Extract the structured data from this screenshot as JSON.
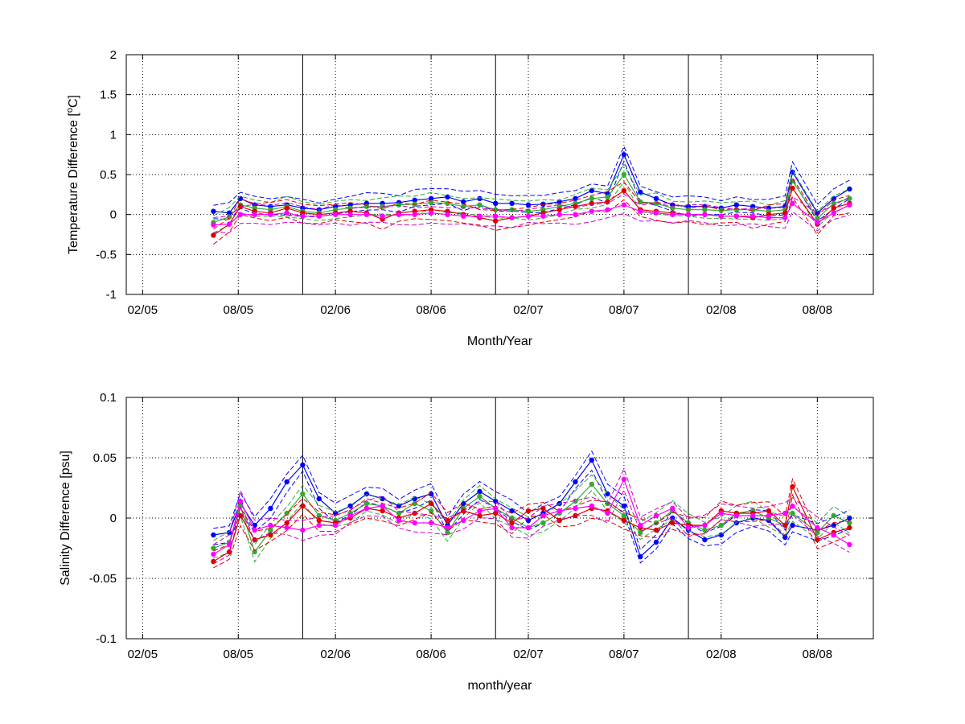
{
  "chart_data": [
    {
      "type": "scatter",
      "xlabel": "Month/Year",
      "ylabel": "Temperature Difference [",
      "ylabel_sup": "o",
      "ylabel_tail": "C]",
      "ylim": [
        -1,
        2
      ],
      "yticks": [
        -1,
        -0.5,
        0,
        0.5,
        1,
        1.5,
        2
      ],
      "ytick_labels": [
        "-1",
        "-0.5",
        "0",
        "0.5",
        "1",
        "1.5",
        "2"
      ],
      "xlim": [
        "2005-01-01",
        "2008-11-15"
      ],
      "xticks": [
        "2005-02-01",
        "2005-08-01",
        "2006-02-01",
        "2006-08-01",
        "2007-02-01",
        "2007-08-01",
        "2008-02-01",
        "2008-08-01"
      ],
      "xtick_labels": [
        "02/05",
        "08/05",
        "02/06",
        "08/06",
        "02/07",
        "08/07",
        "02/08",
        "08/08"
      ],
      "vertical_lines": [
        "2005-12-01",
        "2006-12-01",
        "2007-12-01"
      ],
      "grid": true,
      "series": [
        {
          "color": "#0000ff",
          "band_color": "#0000ff",
          "x": [
            "2005-06-15",
            "2005-07-15",
            "2005-08-05",
            "2005-09-01",
            "2005-10-01",
            "2005-11-01",
            "2005-12-01",
            "2006-01-01",
            "2006-02-01",
            "2006-03-01",
            "2006-04-01",
            "2006-05-01",
            "2006-06-01",
            "2006-07-01",
            "2006-08-01",
            "2006-09-01",
            "2006-10-01",
            "2006-11-01",
            "2006-12-01",
            "2007-01-01",
            "2007-02-01",
            "2007-03-01",
            "2007-04-01",
            "2007-05-01",
            "2007-06-01",
            "2007-07-01",
            "2007-08-01",
            "2007-09-01",
            "2007-10-01",
            "2007-11-01",
            "2007-12-01",
            "2008-01-01",
            "2008-02-01",
            "2008-03-01",
            "2008-04-01",
            "2008-05-01",
            "2008-06-01",
            "2008-06-15",
            "2008-08-01",
            "2008-09-01",
            "2008-10-01"
          ],
          "y": [
            0.04,
            0.02,
            0.2,
            0.12,
            0.1,
            0.12,
            0.08,
            0.06,
            0.1,
            0.12,
            0.14,
            0.14,
            0.15,
            0.18,
            0.2,
            0.22,
            0.16,
            0.2,
            0.14,
            0.14,
            0.12,
            0.13,
            0.16,
            0.2,
            0.3,
            0.26,
            0.75,
            0.28,
            0.2,
            0.12,
            0.1,
            0.1,
            0.08,
            0.12,
            0.1,
            0.08,
            0.1,
            0.53,
            0.02,
            0.2,
            0.32
          ]
        },
        {
          "color": "#33aa33",
          "band_color": "#33aa33",
          "x": [
            "2005-06-15",
            "2005-07-15",
            "2005-08-05",
            "2005-09-01",
            "2005-10-01",
            "2005-11-01",
            "2005-12-01",
            "2006-01-01",
            "2006-02-01",
            "2006-03-01",
            "2006-04-01",
            "2006-05-01",
            "2006-06-01",
            "2006-07-01",
            "2006-08-01",
            "2006-09-01",
            "2006-10-01",
            "2006-11-01",
            "2006-12-01",
            "2007-01-01",
            "2007-02-01",
            "2007-03-01",
            "2007-04-01",
            "2007-05-01",
            "2007-06-01",
            "2007-07-01",
            "2007-08-01",
            "2007-09-01",
            "2007-10-01",
            "2007-11-01",
            "2007-12-01",
            "2008-01-01",
            "2008-02-01",
            "2008-03-01",
            "2008-04-01",
            "2008-05-01",
            "2008-06-01",
            "2008-06-15",
            "2008-08-01",
            "2008-09-01",
            "2008-10-01"
          ],
          "y": [
            -0.1,
            -0.03,
            0.12,
            0.08,
            0.06,
            0.1,
            0.04,
            0.02,
            0.06,
            0.08,
            0.1,
            0.1,
            0.12,
            0.13,
            0.15,
            0.14,
            0.1,
            0.12,
            0.06,
            0.06,
            0.04,
            0.06,
            0.1,
            0.14,
            0.2,
            0.22,
            0.5,
            0.16,
            0.14,
            0.08,
            0.06,
            0.06,
            0.05,
            0.06,
            0.06,
            0.04,
            0.06,
            0.42,
            -0.05,
            0.14,
            0.2
          ]
        },
        {
          "color": "#dd0000",
          "band_color": "#dd0000",
          "x": [
            "2005-06-15",
            "2005-07-15",
            "2005-08-05",
            "2005-09-01",
            "2005-10-01",
            "2005-11-01",
            "2005-12-01",
            "2006-01-01",
            "2006-02-01",
            "2006-03-01",
            "2006-04-01",
            "2006-05-01",
            "2006-06-01",
            "2006-07-01",
            "2006-08-01",
            "2006-09-01",
            "2006-10-01",
            "2006-11-01",
            "2006-12-01",
            "2007-01-01",
            "2007-02-01",
            "2007-03-01",
            "2007-04-01",
            "2007-05-01",
            "2007-06-01",
            "2007-07-01",
            "2007-08-01",
            "2007-09-01",
            "2007-10-01",
            "2007-11-01",
            "2007-12-01",
            "2008-01-01",
            "2008-02-01",
            "2008-03-01",
            "2008-04-01",
            "2008-05-01",
            "2008-06-01",
            "2008-06-15",
            "2008-08-01",
            "2008-09-01",
            "2008-10-01"
          ],
          "y": [
            -0.26,
            -0.12,
            0.1,
            0.04,
            0.02,
            0.08,
            0.02,
            0.0,
            0.02,
            0.04,
            0.02,
            -0.06,
            0.02,
            0.04,
            0.06,
            0.04,
            0.0,
            -0.04,
            -0.08,
            -0.04,
            -0.02,
            0.02,
            0.06,
            0.1,
            0.14,
            0.16,
            0.3,
            0.06,
            0.04,
            0.02,
            0.0,
            0.0,
            -0.02,
            -0.02,
            -0.04,
            0.0,
            0.02,
            0.33,
            -0.12,
            0.08,
            0.14
          ]
        },
        {
          "color": "#ff00ff",
          "band_color": "#cc00cc",
          "x": [
            "2005-06-15",
            "2005-07-15",
            "2005-08-05",
            "2005-09-01",
            "2005-10-01",
            "2005-11-01",
            "2005-12-01",
            "2006-01-01",
            "2006-02-01",
            "2006-03-01",
            "2006-04-01",
            "2006-05-01",
            "2006-06-01",
            "2006-07-01",
            "2006-08-01",
            "2006-09-01",
            "2006-10-01",
            "2006-11-01",
            "2006-12-01",
            "2007-01-01",
            "2007-02-01",
            "2007-03-01",
            "2007-04-01",
            "2007-05-01",
            "2007-06-01",
            "2007-07-01",
            "2007-08-01",
            "2007-09-01",
            "2007-10-01",
            "2007-11-01",
            "2007-12-01",
            "2008-01-01",
            "2008-02-01",
            "2008-03-01",
            "2008-04-01",
            "2008-05-01",
            "2008-06-01",
            "2008-06-15",
            "2008-08-01",
            "2008-09-01",
            "2008-10-01"
          ],
          "y": [
            -0.13,
            -0.12,
            0.0,
            0.0,
            0.0,
            0.02,
            -0.02,
            -0.02,
            0.0,
            0.0,
            0.0,
            -0.02,
            0.0,
            0.0,
            0.02,
            0.0,
            -0.02,
            -0.02,
            -0.02,
            -0.04,
            -0.02,
            -0.02,
            0.0,
            0.0,
            0.04,
            0.06,
            0.12,
            0.04,
            0.02,
            0.0,
            0.0,
            0.0,
            -0.02,
            -0.02,
            -0.02,
            -0.04,
            -0.04,
            0.14,
            -0.1,
            0.02,
            0.12
          ]
        }
      ]
    },
    {
      "type": "scatter",
      "xlabel": "month/year",
      "ylabel": "Salinity Difference [psu]",
      "ylim": [
        -0.1,
        0.1
      ],
      "yticks": [
        -0.1,
        -0.05,
        0,
        0.05,
        0.1
      ],
      "ytick_labels": [
        "-0.1",
        "-0.05",
        "0",
        "0.05",
        "0.1"
      ],
      "xlim": [
        "2005-01-01",
        "2008-11-15"
      ],
      "xticks": [
        "2005-02-01",
        "2005-08-01",
        "2006-02-01",
        "2006-08-01",
        "2007-02-01",
        "2007-08-01",
        "2008-02-01",
        "2008-08-01"
      ],
      "xtick_labels": [
        "02/05",
        "08/05",
        "02/06",
        "08/06",
        "02/07",
        "08/07",
        "02/08",
        "08/08"
      ],
      "vertical_lines": [
        "2005-12-01",
        "2006-12-01",
        "2007-12-01"
      ],
      "grid": true,
      "series": [
        {
          "color": "#0000ff",
          "band_color": "#0000ff",
          "x": [
            "2005-06-15",
            "2005-07-15",
            "2005-08-05",
            "2005-09-01",
            "2005-10-01",
            "2005-11-01",
            "2005-12-01",
            "2006-01-01",
            "2006-02-01",
            "2006-03-01",
            "2006-04-01",
            "2006-05-01",
            "2006-06-01",
            "2006-07-01",
            "2006-08-01",
            "2006-09-01",
            "2006-10-01",
            "2006-11-01",
            "2006-12-01",
            "2007-01-01",
            "2007-02-01",
            "2007-03-01",
            "2007-04-01",
            "2007-05-01",
            "2007-06-01",
            "2007-07-01",
            "2007-08-01",
            "2007-09-01",
            "2007-10-01",
            "2007-11-01",
            "2007-12-01",
            "2008-01-01",
            "2008-02-01",
            "2008-03-01",
            "2008-04-01",
            "2008-05-01",
            "2008-06-01",
            "2008-06-15",
            "2008-08-01",
            "2008-09-01",
            "2008-10-01"
          ],
          "y": [
            -0.014,
            -0.012,
            0.012,
            -0.006,
            0.008,
            0.03,
            0.044,
            0.016,
            0.004,
            0.01,
            0.02,
            0.016,
            0.01,
            0.016,
            0.02,
            -0.006,
            0.012,
            0.022,
            0.014,
            0.006,
            -0.002,
            0.004,
            0.012,
            0.03,
            0.048,
            0.02,
            0.01,
            -0.032,
            -0.02,
            0.0,
            -0.01,
            -0.018,
            -0.014,
            -0.004,
            0.0,
            -0.002,
            -0.016,
            -0.006,
            -0.01,
            -0.006,
            0.0
          ]
        },
        {
          "color": "#33aa33",
          "band_color": "#33aa33",
          "x": [
            "2005-06-15",
            "2005-07-15",
            "2005-08-05",
            "2005-09-01",
            "2005-10-01",
            "2005-11-01",
            "2005-12-01",
            "2006-01-01",
            "2006-02-01",
            "2006-03-01",
            "2006-04-01",
            "2006-05-01",
            "2006-06-01",
            "2006-07-01",
            "2006-08-01",
            "2006-09-01",
            "2006-10-01",
            "2006-11-01",
            "2006-12-01",
            "2007-01-01",
            "2007-02-01",
            "2007-03-01",
            "2007-04-01",
            "2007-05-01",
            "2007-06-01",
            "2007-07-01",
            "2007-08-01",
            "2007-09-01",
            "2007-10-01",
            "2007-11-01",
            "2007-12-01",
            "2008-01-01",
            "2008-02-01",
            "2008-03-01",
            "2008-04-01",
            "2008-05-01",
            "2008-06-01",
            "2008-06-15",
            "2008-08-01",
            "2008-09-01",
            "2008-10-01"
          ],
          "y": [
            -0.025,
            -0.02,
            0.01,
            -0.028,
            -0.01,
            0.004,
            0.02,
            0.002,
            -0.002,
            0.004,
            0.012,
            0.01,
            0.004,
            0.012,
            0.006,
            -0.012,
            0.008,
            0.018,
            0.008,
            0.0,
            -0.008,
            -0.004,
            0.004,
            0.014,
            0.028,
            0.012,
            0.002,
            -0.012,
            -0.004,
            0.006,
            -0.004,
            -0.01,
            -0.006,
            0.004,
            0.006,
            0.0,
            -0.006,
            0.004,
            -0.012,
            0.002,
            -0.004
          ]
        },
        {
          "color": "#dd0000",
          "band_color": "#dd0000",
          "x": [
            "2005-06-15",
            "2005-07-15",
            "2005-08-05",
            "2005-09-01",
            "2005-10-01",
            "2005-11-01",
            "2005-12-01",
            "2006-01-01",
            "2006-02-01",
            "2006-03-01",
            "2006-04-01",
            "2006-05-01",
            "2006-06-01",
            "2006-07-01",
            "2006-08-01",
            "2006-09-01",
            "2006-10-01",
            "2006-11-01",
            "2006-12-01",
            "2007-01-01",
            "2007-02-01",
            "2007-03-01",
            "2007-04-01",
            "2007-05-01",
            "2007-06-01",
            "2007-07-01",
            "2007-08-01",
            "2007-09-01",
            "2007-10-01",
            "2007-11-01",
            "2007-12-01",
            "2008-01-01",
            "2008-02-01",
            "2008-03-01",
            "2008-04-01",
            "2008-05-01",
            "2008-06-01",
            "2008-06-15",
            "2008-08-01",
            "2008-09-01",
            "2008-10-01"
          ],
          "y": [
            -0.036,
            -0.028,
            0.002,
            -0.018,
            -0.014,
            -0.004,
            0.01,
            -0.002,
            -0.004,
            0.0,
            0.008,
            0.006,
            0.0,
            0.004,
            0.012,
            -0.002,
            0.006,
            0.002,
            0.004,
            -0.004,
            0.006,
            0.008,
            -0.002,
            0.002,
            0.008,
            0.006,
            -0.002,
            -0.008,
            -0.01,
            -0.004,
            -0.006,
            -0.006,
            0.006,
            0.004,
            0.004,
            0.006,
            -0.006,
            0.026,
            -0.018,
            -0.012,
            -0.008
          ]
        },
        {
          "color": "#ff00ff",
          "band_color": "#cc00cc",
          "x": [
            "2005-06-15",
            "2005-07-15",
            "2005-08-05",
            "2005-09-01",
            "2005-10-01",
            "2005-11-01",
            "2005-12-01",
            "2006-01-01",
            "2006-02-01",
            "2006-03-01",
            "2006-04-01",
            "2006-05-01",
            "2006-06-01",
            "2006-07-01",
            "2006-08-01",
            "2006-09-01",
            "2006-10-01",
            "2006-11-01",
            "2006-12-01",
            "2007-01-01",
            "2007-02-01",
            "2007-03-01",
            "2007-04-01",
            "2007-05-01",
            "2007-06-01",
            "2007-07-01",
            "2007-08-01",
            "2007-09-01",
            "2007-10-01",
            "2007-11-01",
            "2007-12-01",
            "2008-01-01",
            "2008-02-01",
            "2008-03-01",
            "2008-04-01",
            "2008-05-01",
            "2008-06-01",
            "2008-06-15",
            "2008-08-01",
            "2008-09-01",
            "2008-10-01"
          ],
          "y": [
            -0.03,
            -0.022,
            0.014,
            -0.01,
            -0.006,
            -0.008,
            -0.01,
            -0.006,
            -0.006,
            0.002,
            0.008,
            0.01,
            -0.002,
            -0.004,
            -0.004,
            -0.008,
            -0.002,
            0.006,
            0.008,
            -0.008,
            -0.008,
            0.002,
            0.006,
            0.008,
            0.01,
            0.004,
            0.032,
            -0.006,
            0.002,
            0.008,
            -0.008,
            -0.006,
            0.004,
            0.002,
            0.002,
            0.002,
            0.004,
            0.01,
            -0.008,
            -0.014,
            -0.022
          ]
        }
      ]
    }
  ]
}
